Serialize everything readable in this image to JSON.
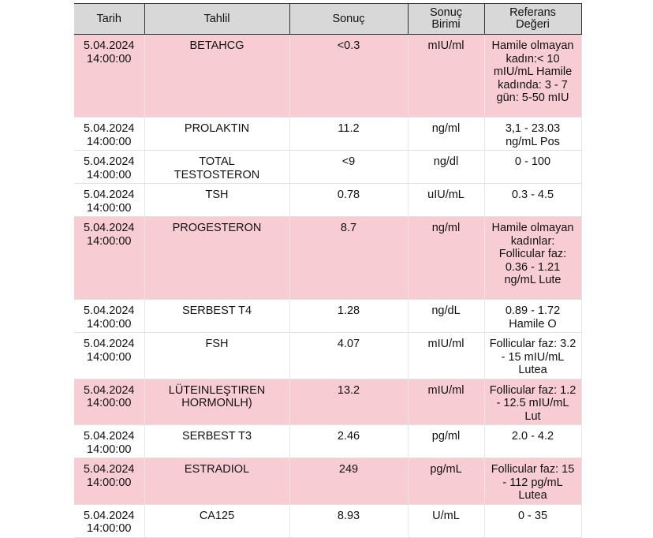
{
  "headers": {
    "date": "Tarih",
    "test": "Tahlil",
    "result": "Sonuç",
    "unit": "Sonuç Birimi",
    "ref": "Referans Değeri"
  },
  "colors": {
    "highlight": "#f8ccd3",
    "header": "#d8d8d8"
  },
  "rows": [
    {
      "date": "5.04.2024 14:00:00",
      "test": "BETAHCG",
      "result": "<0.3",
      "unit": "mIU/ml",
      "ref": "Hamile olmayan kadın:< 10 mIU/mL Hamile kadında: 3 - 7 gün: 5-50 mIU",
      "highlight": true,
      "h": 105
    },
    {
      "date": "5.04.2024 14:00:00",
      "test": "PROLAKTIN",
      "result": "11.2",
      "unit": "ng/ml",
      "ref": "3,1 - 23.03 ng/mL Pos",
      "highlight": false,
      "h": 40
    },
    {
      "date": "5.04.2024 14:00:00",
      "test": "TOTAL TESTOSTERON",
      "result": "<9",
      "unit": "ng/dl",
      "ref": "0 - 100",
      "highlight": false,
      "h": 37
    },
    {
      "date": "5.04.2024 14:00:00",
      "test": "TSH",
      "result": "0.78",
      "unit": "uIU/mL",
      "ref": "0.3 - 4.5",
      "highlight": false,
      "h": 37
    },
    {
      "date": "5.04.2024 14:00:00",
      "test": "PROGESTERON",
      "result": "8.7",
      "unit": "ng/ml",
      "ref": "Hamile olmayan kadınlar: Follicular faz: 0.36 - 1.21 ng/mL Lute",
      "highlight": true,
      "h": 105
    },
    {
      "date": "5.04.2024 14:00:00",
      "test": "SERBEST T4",
      "result": "1.28",
      "unit": "ng/dL",
      "ref": "0.89 - 1.72 Hamile O",
      "highlight": false,
      "h": 38
    },
    {
      "date": "5.04.2024 14:00:00",
      "test": "FSH",
      "result": "4.07",
      "unit": "mIU/ml",
      "ref": "Follicular faz: 3.2 - 15 mIU/mL Lutea",
      "highlight": false,
      "h": 56
    },
    {
      "date": "5.04.2024 14:00:00",
      "test": "LÜTEINLEŞTIREN HORMONLH)",
      "result": "13.2",
      "unit": "mIU/ml",
      "ref": "Follicular faz: 1.2 - 12.5 mIU/mL Lut",
      "highlight": true,
      "h": 56
    },
    {
      "date": "5.04.2024 14:00:00",
      "test": "SERBEST T3",
      "result": "2.46",
      "unit": "pg/ml",
      "ref": "2.0 - 4.2",
      "highlight": false,
      "h": 37
    },
    {
      "date": "5.04.2024 14:00:00",
      "test": "ESTRADIOL",
      "result": "249",
      "unit": "pg/mL",
      "ref": "Follicular faz: 15 - 112 pg/mL Lutea",
      "highlight": true,
      "h": 56
    },
    {
      "date": "5.04.2024 14:00:00",
      "test": "CA125",
      "result": "8.93",
      "unit": "U/mL",
      "ref": "0 - 35",
      "highlight": false,
      "h": 40
    }
  ]
}
